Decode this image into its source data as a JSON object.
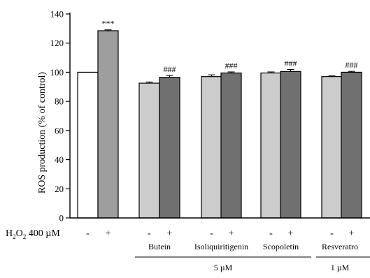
{
  "chart_data": {
    "type": "bar",
    "ylabel": "ROS production (% of control)",
    "ylim": [
      0,
      140
    ],
    "yticks": [
      0,
      20,
      40,
      60,
      80,
      100,
      120,
      140
    ],
    "treatment_row_label": {
      "base": "H",
      "sub1": "2",
      "mid": "O",
      "sub2": "2",
      "rest": " 400 µM"
    },
    "bars": [
      {
        "h2o2": "-",
        "value": 100,
        "error": 0,
        "annotation": "",
        "color": "#ffffff"
      },
      {
        "h2o2": "+",
        "value": 128.5,
        "error": 0.6,
        "annotation": "***",
        "color": "#9e9e9e"
      },
      {
        "h2o2": "-",
        "value": 92.5,
        "error": 0.8,
        "annotation": "",
        "color": "#cccccc"
      },
      {
        "h2o2": "+",
        "value": 96.5,
        "error": 1.3,
        "annotation": "###",
        "color": "#707070"
      },
      {
        "h2o2": "-",
        "value": 97.0,
        "error": 1.2,
        "annotation": "",
        "color": "#cccccc"
      },
      {
        "h2o2": "+",
        "value": 99.5,
        "error": 0.7,
        "annotation": "###",
        "color": "#707070"
      },
      {
        "h2o2": "-",
        "value": 99.5,
        "error": 0.7,
        "annotation": "",
        "color": "#cccccc"
      },
      {
        "h2o2": "+",
        "value": 100.5,
        "error": 1.4,
        "annotation": "###",
        "color": "#707070"
      },
      {
        "h2o2": "-",
        "value": 97.0,
        "error": 0.5,
        "annotation": "",
        "color": "#cccccc"
      },
      {
        "h2o2": "+",
        "value": 100.0,
        "error": 0.6,
        "annotation": "###",
        "color": "#707070"
      }
    ],
    "groups": [
      {
        "label": "Butein",
        "bars": [
          2,
          3
        ]
      },
      {
        "label": "Isoliquiritigenin",
        "bars": [
          4,
          5
        ]
      },
      {
        "label": "Scopoletin",
        "bars": [
          6,
          7
        ]
      },
      {
        "label": "Resveratro",
        "bars": [
          8,
          9
        ]
      }
    ],
    "concentrations": [
      {
        "label": "5 µM",
        "groups": [
          0,
          1,
          2
        ]
      },
      {
        "label": "1 µM",
        "groups": [
          3,
          3
        ]
      }
    ]
  }
}
